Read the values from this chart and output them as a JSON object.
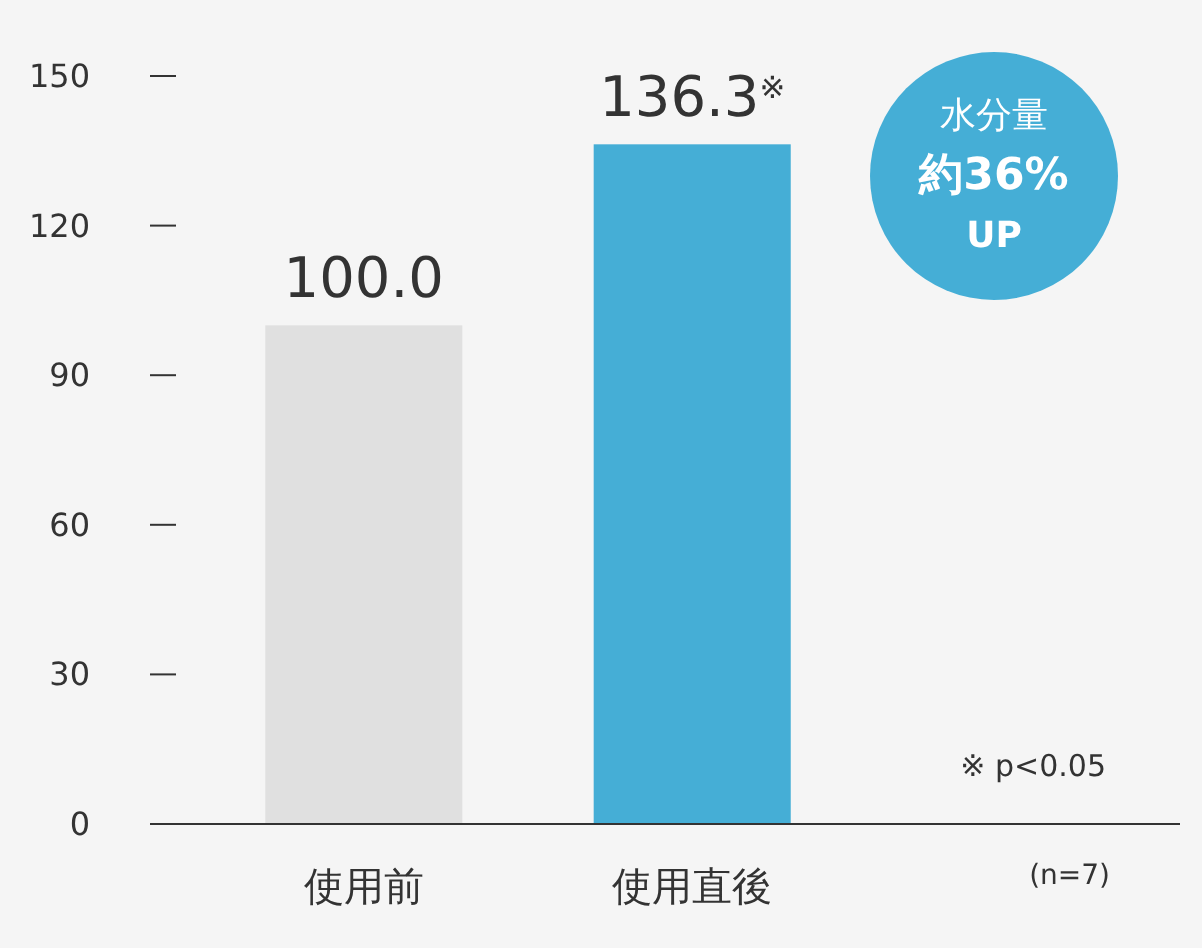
{
  "chart_data": {
    "type": "bar",
    "categories": [
      "使用前",
      "使用直後"
    ],
    "values": [
      100.0,
      136.3
    ],
    "colors": [
      "#e0e0e0",
      "#45aed6"
    ],
    "value_labels": [
      "100.0",
      "136.3$^{※}$"
    ],
    "ylim": [
      0,
      150
    ],
    "yticks": [
      0,
      30,
      60,
      90,
      120,
      150
    ],
    "grid": false,
    "annotations": [
      "水分量",
      "約36%",
      "UP",
      "※ p<0.05",
      "(n=7)"
    ]
  }
}
